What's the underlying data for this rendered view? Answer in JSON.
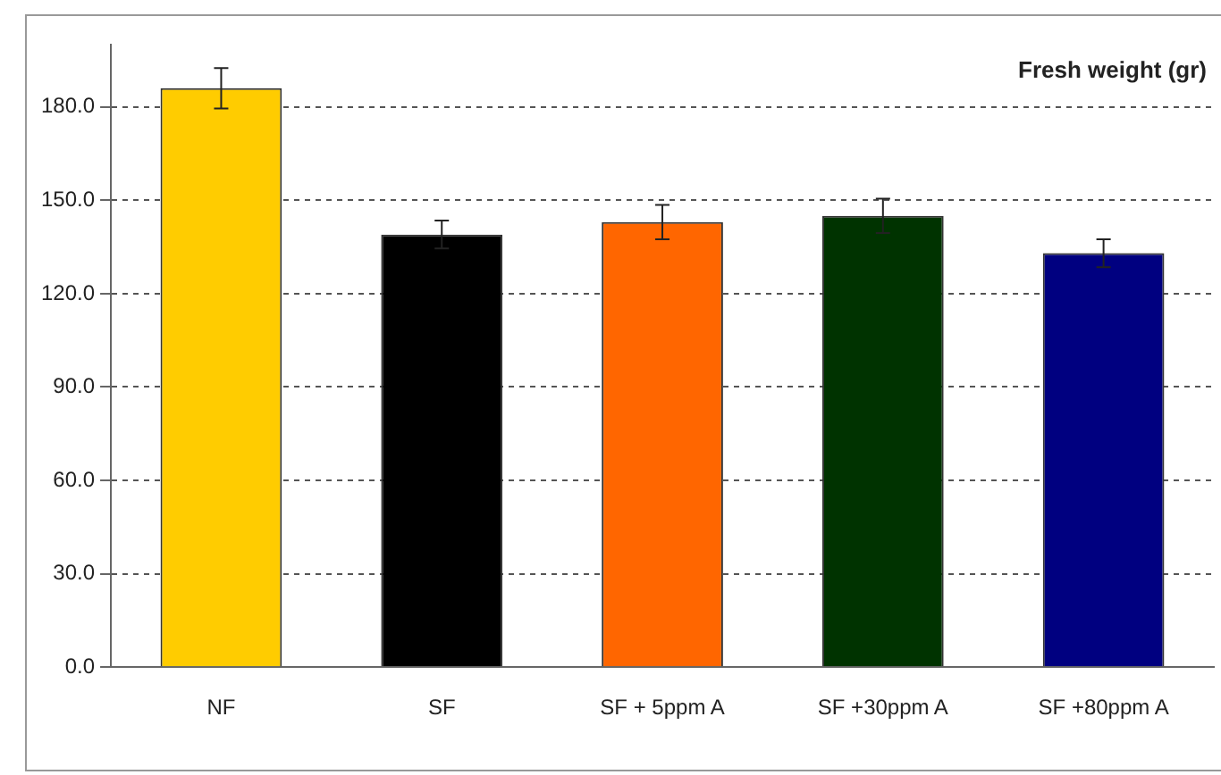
{
  "chart_data": {
    "type": "bar",
    "title": "Fresh weight (gr)",
    "categories": [
      "NF",
      "SF",
      "SF + 5ppm A",
      "SF +30ppm A",
      "SF +80ppm A"
    ],
    "values": [
      186,
      139,
      143,
      145,
      133
    ],
    "colors": [
      "#ffcc00",
      "#000000",
      "#ff6600",
      "#003300",
      "#000080"
    ],
    "errors": [
      6.5,
      4.5,
      5.5,
      5.5,
      4.5
    ],
    "ylim": [
      0,
      200
    ],
    "yticks": [
      {
        "value": 0,
        "label": "0.0"
      },
      {
        "value": 30,
        "label": "30.0"
      },
      {
        "value": 60,
        "label": "60.0"
      },
      {
        "value": 90,
        "label": "90.0"
      },
      {
        "value": 120,
        "label": "120.0"
      },
      {
        "value": 150,
        "label": "150.0"
      },
      {
        "value": 180,
        "label": "180.0"
      }
    ],
    "grid": "y",
    "legend": false
  }
}
